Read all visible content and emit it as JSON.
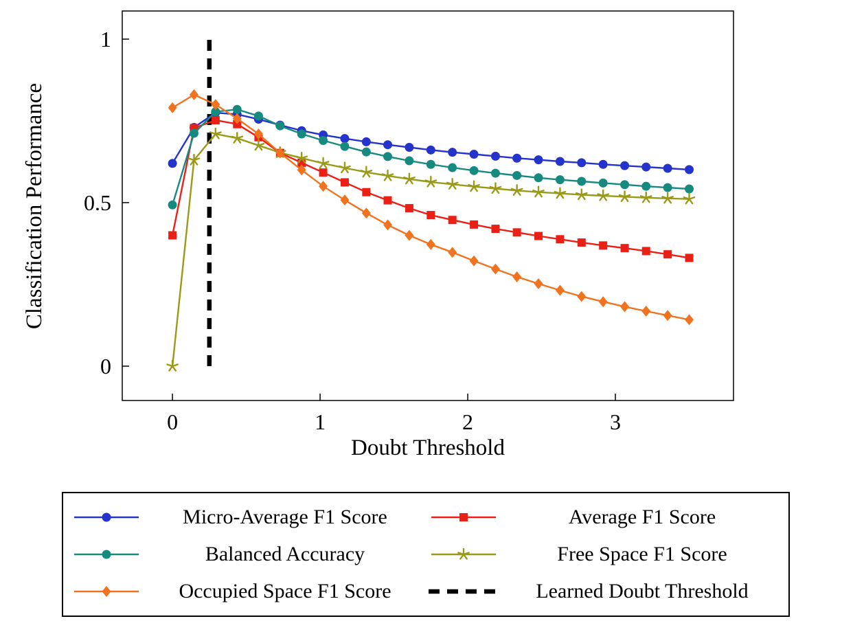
{
  "figure": {
    "background": "#ffffff"
  },
  "chart_data": {
    "type": "line",
    "title": "",
    "xlabel": "Doubt Threshold",
    "ylabel": "Classification Performance",
    "xlim": [
      -0.34,
      3.8
    ],
    "ylim": [
      -0.105,
      1.086
    ],
    "grid": false,
    "legend_position": "below",
    "xticks": {
      "values": [
        0,
        1,
        2,
        3
      ],
      "labels": [
        "0",
        "1",
        "2",
        "3"
      ]
    },
    "yticks": {
      "values": [
        0,
        0.5,
        1
      ],
      "labels": [
        "0",
        "0.5",
        "1"
      ]
    },
    "x": [
      0,
      0.146,
      0.292,
      0.438,
      0.583,
      0.729,
      0.875,
      1.021,
      1.167,
      1.313,
      1.458,
      1.604,
      1.75,
      1.896,
      2.042,
      2.188,
      2.333,
      2.479,
      2.625,
      2.771,
      2.917,
      3.063,
      3.208,
      3.354,
      3.5
    ],
    "series": [
      {
        "name": "Micro-Average F1 Score",
        "color": "#2333cb",
        "marker": "circle",
        "values": [
          0.62,
          0.73,
          0.775,
          0.77,
          0.755,
          0.737,
          0.72,
          0.707,
          0.696,
          0.686,
          0.677,
          0.669,
          0.661,
          0.654,
          0.648,
          0.642,
          0.636,
          0.631,
          0.626,
          0.622,
          0.617,
          0.613,
          0.609,
          0.605,
          0.601
        ]
      },
      {
        "name": "Average F1 Score",
        "color": "#ea2016",
        "marker": "square",
        "values": [
          0.4,
          0.728,
          0.752,
          0.74,
          0.7,
          0.652,
          0.622,
          0.592,
          0.562,
          0.532,
          0.507,
          0.483,
          0.462,
          0.447,
          0.433,
          0.42,
          0.409,
          0.398,
          0.388,
          0.378,
          0.369,
          0.361,
          0.352,
          0.342,
          0.331
        ]
      },
      {
        "name": "Balanced Accuracy",
        "color": "#178a80",
        "marker": "circle",
        "values": [
          0.493,
          0.712,
          0.778,
          0.785,
          0.765,
          0.735,
          0.71,
          0.69,
          0.672,
          0.655,
          0.641,
          0.628,
          0.617,
          0.607,
          0.598,
          0.59,
          0.583,
          0.576,
          0.57,
          0.565,
          0.56,
          0.555,
          0.55,
          0.546,
          0.542
        ]
      },
      {
        "name": "Free Space F1 Score",
        "color": "#9a9a19",
        "marker": "star",
        "values": [
          0.0,
          0.63,
          0.71,
          0.697,
          0.675,
          0.653,
          0.636,
          0.62,
          0.606,
          0.593,
          0.582,
          0.572,
          0.563,
          0.556,
          0.549,
          0.543,
          0.537,
          0.532,
          0.528,
          0.524,
          0.521,
          0.518,
          0.515,
          0.513,
          0.511
        ]
      },
      {
        "name": "Occupied Space F1 Score",
        "color": "#f1731f",
        "marker": "diamond",
        "values": [
          0.79,
          0.83,
          0.8,
          0.757,
          0.71,
          0.652,
          0.6,
          0.55,
          0.508,
          0.468,
          0.432,
          0.4,
          0.372,
          0.348,
          0.322,
          0.297,
          0.273,
          0.252,
          0.232,
          0.213,
          0.197,
          0.182,
          0.168,
          0.155,
          0.142
        ]
      }
    ],
    "threshold_line": {
      "name": "Learned Doubt Threshold",
      "x": 0.25,
      "y_from": 0,
      "y_to": 1.0,
      "color": "#000000",
      "style": "dashed"
    }
  }
}
